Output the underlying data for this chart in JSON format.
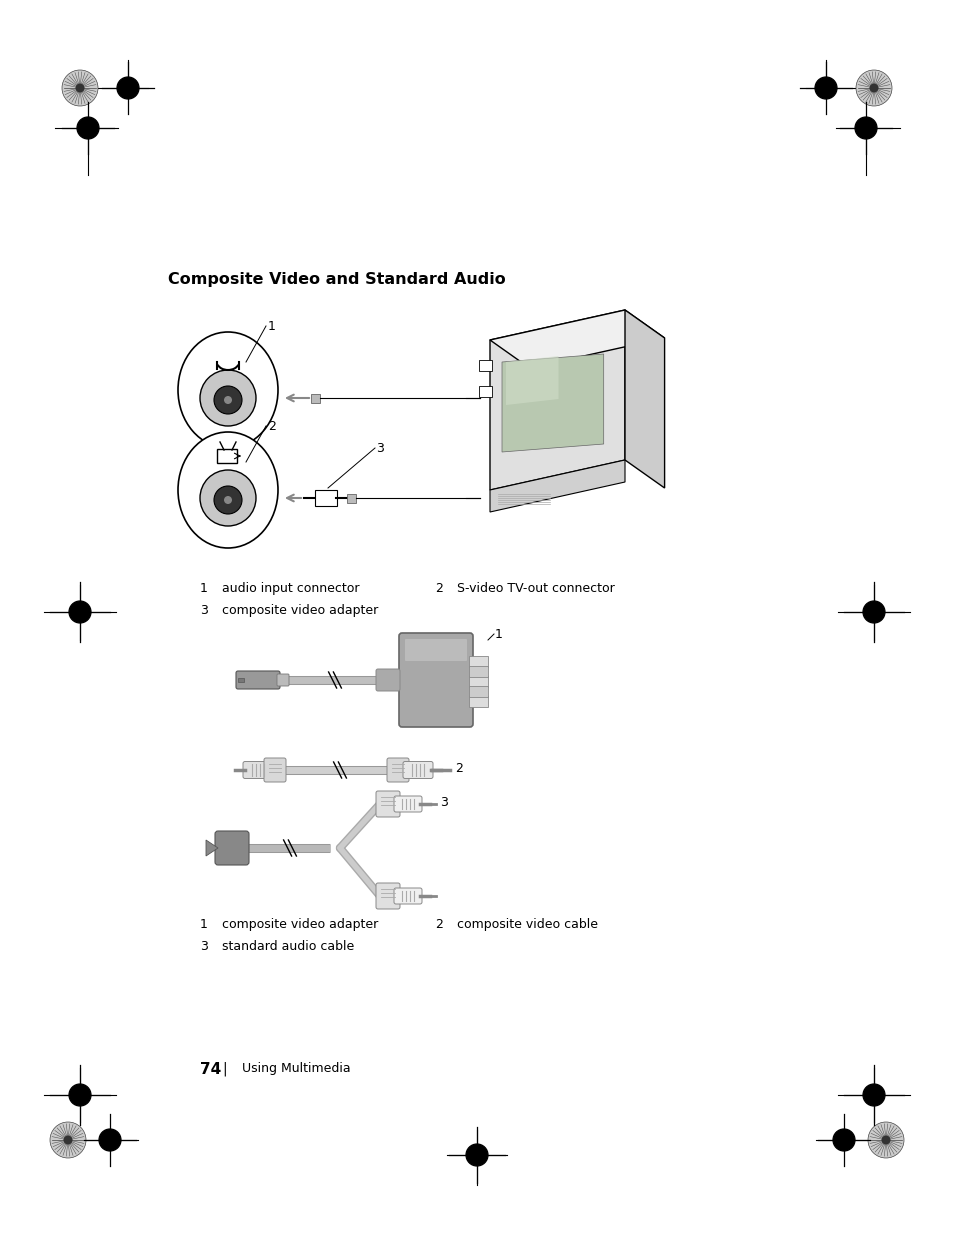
{
  "bg_color": "#ffffff",
  "page_width": 9.54,
  "page_height": 12.35,
  "dpi": 100,
  "title": "Composite Video and Standard Audio",
  "title_fontsize": 11.5,
  "label1_items": [
    {
      "num": "1",
      "label": "audio input connector"
    },
    {
      "num": "2",
      "label": "S-video TV-out connector"
    },
    {
      "num": "3",
      "label": "composite video adapter"
    }
  ],
  "label2_items": [
    {
      "num": "1",
      "label": "composite video adapter"
    },
    {
      "num": "2",
      "label": "composite video cable"
    },
    {
      "num": "3",
      "label": "standard audio cable"
    }
  ],
  "footer_num": "74",
  "footer_label": "Using Multimedia",
  "color_gray_light": "#d8d8d8",
  "color_gray_mid": "#b0b0b0",
  "color_gray_dark": "#888888",
  "color_gray_darker": "#666666",
  "color_black": "#000000"
}
